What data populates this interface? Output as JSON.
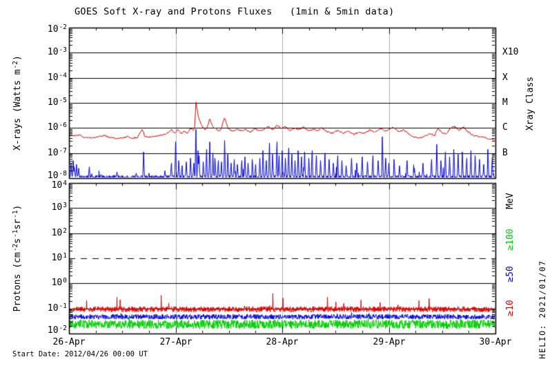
{
  "title": "GOES Soft X-ray and Protons Fluxes   (1min & 5min data)",
  "footer": "Start Date: 2012/04/26 00:00 UT",
  "watermark": "HELIO: 2021/01/07",
  "colors": {
    "red": "#dd0000",
    "blue": "#0000dd",
    "green": "#00cc00",
    "day_line": "#b0b0b0",
    "frame": "#000000",
    "background": "#ffffff"
  },
  "render_seed": 20120426,
  "x_axis": {
    "labels": [
      "26-Apr",
      "27-Apr",
      "28-Apr",
      "29-Apr",
      "30-Apr"
    ],
    "range_days": 4,
    "minor_tick_hours": 6
  },
  "chart_data": [
    {
      "type": "line",
      "panel": "xray",
      "ylabel": "X-rays (Watts m-2)",
      "ylabel_parts": {
        "p0": "X-rays (Watts m",
        "s0": "-2",
        "p1": ")"
      },
      "ylog_top": -2,
      "ylog_bottom": -8,
      "yticks": [
        {
          "base": "10",
          "exp": "-2"
        },
        {
          "base": "10",
          "exp": "-3"
        },
        {
          "base": "10",
          "exp": "-4"
        },
        {
          "base": "10",
          "exp": "-5"
        },
        {
          "base": "10",
          "exp": "-6"
        },
        {
          "base": "10",
          "exp": "-7"
        },
        {
          "base": "10",
          "exp": "-8"
        }
      ],
      "gridlines_log": [
        -3,
        -4,
        -5,
        -6,
        -7
      ],
      "right_axis": {
        "title": "Xray Class",
        "labels": [
          {
            "text": "X10",
            "log": -3
          },
          {
            "text": "X",
            "log": -4
          },
          {
            "text": "M",
            "log": -5
          },
          {
            "text": "C",
            "log": -6
          },
          {
            "text": "B",
            "log": -7
          }
        ]
      },
      "series": [
        {
          "name": "xray-long-1-8A",
          "color_key": "red",
          "render": "curve",
          "noise_log": 0.03,
          "baseline_points": [
            [
              0,
              -6.25
            ],
            [
              0.05,
              -6.3
            ],
            [
              0.1,
              -6.28
            ],
            [
              0.15,
              -6.38
            ],
            [
              0.22,
              -6.4
            ],
            [
              0.28,
              -6.35
            ],
            [
              0.33,
              -6.3
            ],
            [
              0.38,
              -6.38
            ],
            [
              0.45,
              -6.42
            ],
            [
              0.5,
              -6.4
            ],
            [
              0.55,
              -6.35
            ],
            [
              0.6,
              -6.4
            ],
            [
              0.64,
              -6.38
            ],
            [
              0.69,
              -6.05
            ],
            [
              0.71,
              -6.35
            ],
            [
              0.76,
              -6.36
            ],
            [
              0.82,
              -6.32
            ],
            [
              0.88,
              -6.28
            ],
            [
              0.93,
              -6.2
            ],
            [
              0.96,
              -6.05
            ],
            [
              0.99,
              -6.2
            ],
            [
              1.02,
              -6.08
            ],
            [
              1.05,
              -6.22
            ],
            [
              1.08,
              -6.12
            ],
            [
              1.11,
              -6.2
            ],
            [
              1.14,
              -6.02
            ],
            [
              1.17,
              -6.1
            ],
            [
              1.18,
              -5.9
            ],
            [
              1.19,
              -4.93
            ],
            [
              1.2,
              -5.25
            ],
            [
              1.22,
              -5.65
            ],
            [
              1.25,
              -5.95
            ],
            [
              1.28,
              -6.08
            ],
            [
              1.3,
              -5.92
            ],
            [
              1.32,
              -5.65
            ],
            [
              1.35,
              -5.95
            ],
            [
              1.38,
              -6.05
            ],
            [
              1.42,
              -6.12
            ],
            [
              1.46,
              -5.58
            ],
            [
              1.49,
              -6.02
            ],
            [
              1.53,
              -6.12
            ],
            [
              1.58,
              -6.05
            ],
            [
              1.62,
              -6.12
            ],
            [
              1.66,
              -6.05
            ],
            [
              1.7,
              -6.18
            ],
            [
              1.74,
              -6.02
            ],
            [
              1.78,
              -6.12
            ],
            [
              1.83,
              -6.05
            ],
            [
              1.87,
              -5.92
            ],
            [
              1.91,
              -6.08
            ],
            [
              1.95,
              -5.88
            ],
            [
              1.99,
              -6.02
            ],
            [
              2.03,
              -5.95
            ],
            [
              2.07,
              -6.1
            ],
            [
              2.12,
              -6.0
            ],
            [
              2.16,
              -6.08
            ],
            [
              2.2,
              -5.95
            ],
            [
              2.24,
              -6.12
            ],
            [
              2.29,
              -6.05
            ],
            [
              2.33,
              -6.1
            ],
            [
              2.37,
              -6.0
            ],
            [
              2.42,
              -6.15
            ],
            [
              2.47,
              -6.2
            ],
            [
              2.52,
              -6.1
            ],
            [
              2.57,
              -6.22
            ],
            [
              2.62,
              -6.12
            ],
            [
              2.67,
              -6.25
            ],
            [
              2.72,
              -6.18
            ],
            [
              2.77,
              -6.22
            ],
            [
              2.82,
              -6.08
            ],
            [
              2.87,
              -6.18
            ],
            [
              2.92,
              -6.02
            ],
            [
              2.96,
              -6.12
            ],
            [
              3.0,
              -6.08
            ],
            [
              3.04,
              -5.98
            ],
            [
              3.09,
              -6.15
            ],
            [
              3.14,
              -6.08
            ],
            [
              3.19,
              -6.25
            ],
            [
              3.24,
              -6.35
            ],
            [
              3.29,
              -6.4
            ],
            [
              3.34,
              -6.32
            ],
            [
              3.39,
              -6.22
            ],
            [
              3.43,
              -6.3
            ],
            [
              3.46,
              -6.02
            ],
            [
              3.5,
              -6.18
            ],
            [
              3.54,
              -6.22
            ],
            [
              3.58,
              -6.0
            ],
            [
              3.62,
              -5.95
            ],
            [
              3.66,
              -6.1
            ],
            [
              3.7,
              -5.95
            ],
            [
              3.74,
              -6.15
            ],
            [
              3.79,
              -6.3
            ],
            [
              3.85,
              -6.35
            ],
            [
              3.91,
              -6.4
            ],
            [
              3.96,
              -6.45
            ],
            [
              4,
              -6.45
            ]
          ]
        },
        {
          "name": "xray-short-05-4A",
          "color_key": "blue",
          "render": "spikes",
          "base_log": -7.95,
          "noise_log": 0.06,
          "spike_halfwidth_day": 0.008,
          "random_spike_rate": 0.05,
          "random_spike_amp": 0.5,
          "spikes": [
            [
              0.02,
              -7.4
            ],
            [
              0.04,
              -7.3
            ],
            [
              0.05,
              -7.55
            ],
            [
              0.07,
              -7.45
            ],
            [
              0.09,
              -7.6
            ],
            [
              0.19,
              -7.55
            ],
            [
              0.3,
              -7.85
            ],
            [
              0.45,
              -7.75
            ],
            [
              0.63,
              -7.8
            ],
            [
              0.7,
              -6.95
            ],
            [
              0.75,
              -7.8
            ],
            [
              0.9,
              -7.7
            ],
            [
              0.96,
              -7.4
            ],
            [
              1.0,
              -6.55
            ],
            [
              1.03,
              -7.3
            ],
            [
              1.06,
              -7.5
            ],
            [
              1.1,
              -7.35
            ],
            [
              1.14,
              -7.2
            ],
            [
              1.17,
              -7.4
            ],
            [
              1.19,
              -6.05
            ],
            [
              1.21,
              -6.9
            ],
            [
              1.22,
              -7.1
            ],
            [
              1.26,
              -7.35
            ],
            [
              1.29,
              -6.85
            ],
            [
              1.32,
              -6.55
            ],
            [
              1.35,
              -7.0
            ],
            [
              1.37,
              -7.2
            ],
            [
              1.4,
              -7.3
            ],
            [
              1.43,
              -7.35
            ],
            [
              1.46,
              -6.5
            ],
            [
              1.49,
              -7.05
            ],
            [
              1.52,
              -7.4
            ],
            [
              1.55,
              -7.25
            ],
            [
              1.58,
              -7.45
            ],
            [
              1.62,
              -7.3
            ],
            [
              1.65,
              -7.15
            ],
            [
              1.68,
              -7.4
            ],
            [
              1.72,
              -7.25
            ],
            [
              1.75,
              -7.45
            ],
            [
              1.79,
              -7.2
            ],
            [
              1.82,
              -6.9
            ],
            [
              1.85,
              -7.3
            ],
            [
              1.88,
              -6.6
            ],
            [
              1.91,
              -7.05
            ],
            [
              1.95,
              -6.55
            ],
            [
              1.97,
              -7.1
            ],
            [
              2.0,
              -6.9
            ],
            [
              2.03,
              -7.2
            ],
            [
              2.06,
              -6.8
            ],
            [
              2.09,
              -7.05
            ],
            [
              2.12,
              -7.3
            ],
            [
              2.15,
              -6.9
            ],
            [
              2.18,
              -7.15
            ],
            [
              2.21,
              -6.95
            ],
            [
              2.25,
              -7.2
            ],
            [
              2.28,
              -6.9
            ],
            [
              2.32,
              -7.1
            ],
            [
              2.36,
              -7.3
            ],
            [
              2.4,
              -7.0
            ],
            [
              2.44,
              -7.25
            ],
            [
              2.48,
              -7.4
            ],
            [
              2.52,
              -7.1
            ],
            [
              2.56,
              -7.3
            ],
            [
              2.6,
              -7.5
            ],
            [
              2.65,
              -7.2
            ],
            [
              2.7,
              -7.4
            ],
            [
              2.75,
              -7.15
            ],
            [
              2.8,
              -7.35
            ],
            [
              2.85,
              -7.1
            ],
            [
              2.9,
              -7.3
            ],
            [
              2.94,
              -6.35
            ],
            [
              2.97,
              -7.2
            ],
            [
              3.0,
              -7.4
            ],
            [
              3.05,
              -7.25
            ],
            [
              3.1,
              -7.5
            ],
            [
              3.17,
              -7.3
            ],
            [
              3.24,
              -7.6
            ],
            [
              3.32,
              -7.4
            ],
            [
              3.4,
              -7.25
            ],
            [
              3.45,
              -6.65
            ],
            [
              3.49,
              -7.3
            ],
            [
              3.53,
              -6.95
            ],
            [
              3.57,
              -7.15
            ],
            [
              3.61,
              -6.85
            ],
            [
              3.65,
              -7.05
            ],
            [
              3.69,
              -6.95
            ],
            [
              3.73,
              -7.2
            ],
            [
              3.77,
              -6.9
            ],
            [
              3.81,
              -7.1
            ],
            [
              3.85,
              -7.25
            ],
            [
              3.89,
              -7.45
            ],
            [
              3.93,
              -6.85
            ],
            [
              3.97,
              -7.15
            ]
          ]
        }
      ]
    },
    {
      "type": "line",
      "panel": "protons",
      "ylabel": "Protons (cm-2s-1sr-1)",
      "ylabel_parts": {
        "p0": "Protons (cm",
        "s0": "-2",
        "p1": "s",
        "s1": "-1",
        "p2": "sr",
        "s2": "-1",
        "p3": ")"
      },
      "ylog_top": 4,
      "ylog_bottom": -2,
      "yticks": [
        {
          "base": "10",
          "exp": "4"
        },
        {
          "base": "10",
          "exp": "3"
        },
        {
          "base": "10",
          "exp": "2"
        },
        {
          "base": "10",
          "exp": "1"
        },
        {
          "base": "10",
          "exp": "0"
        },
        {
          "base": "10",
          "exp": "-1"
        },
        {
          "base": "10",
          "exp": "-2"
        }
      ],
      "gridlines_log": [
        3,
        2,
        0,
        -1
      ],
      "threshold": {
        "log": 1,
        "style": "dashed",
        "dash": [
          9,
          8
        ]
      },
      "right_axis": {
        "title": "MeV",
        "labels": [
          {
            "text": "≥100",
            "color_key": "green"
          },
          {
            "text": "≥50",
            "color_key": "blue"
          },
          {
            "text": "≥10",
            "color_key": "red"
          }
        ]
      },
      "series": [
        {
          "name": "protons-ge10MeV",
          "label": "≥10",
          "color_key": "red",
          "render": "band",
          "base_log": -1.03,
          "noise_log": 0.11,
          "spike_rate": 0.012,
          "spike_amp": 0.55
        },
        {
          "name": "protons-ge50MeV",
          "label": "≥50",
          "color_key": "blue",
          "render": "band",
          "base_log": -1.33,
          "noise_log": 0.1,
          "spike_rate": 0.008,
          "spike_amp": 0.3
        },
        {
          "name": "protons-ge100MeV",
          "label": "≥100",
          "color_key": "green",
          "render": "band",
          "base_log": -1.63,
          "noise_log": 0.18,
          "spike_rate": 0.004,
          "spike_amp": 0.2
        }
      ]
    }
  ]
}
